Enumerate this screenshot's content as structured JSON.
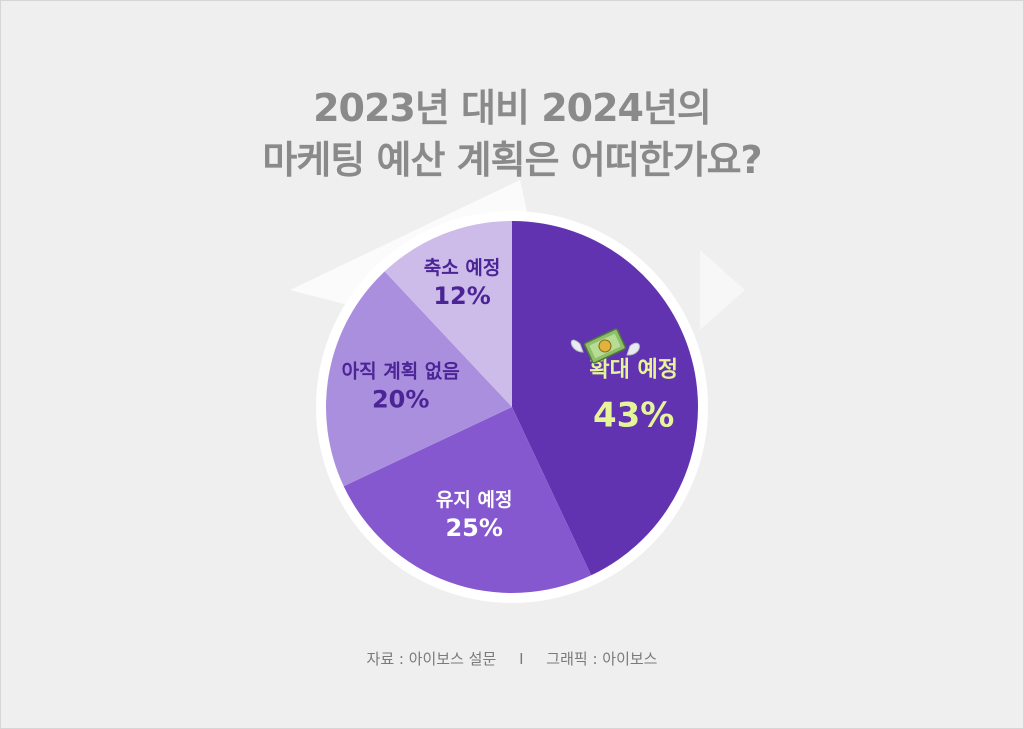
{
  "title": {
    "line1": "2023년 대비 2024년의",
    "line2": "마케팅 예산 계획은 어떠한가요?"
  },
  "chart_data": {
    "type": "pie",
    "slices": [
      {
        "label": "확대 예정",
        "value": 43,
        "display": "43%",
        "color": "#6233b0",
        "text_color": "#e7f59a"
      },
      {
        "label": "유지 예정",
        "value": 25,
        "display": "25%",
        "color": "#8658cf",
        "text_color": "#ffffff"
      },
      {
        "label": "아직 계획 없음",
        "value": 20,
        "display": "20%",
        "color": "#ab8fdf",
        "text_color": "#4b2595"
      },
      {
        "label": "축소 예정",
        "value": 12,
        "display": "12%",
        "color": "#cdbbea",
        "text_color": "#4b2595"
      }
    ],
    "start_angle_deg": 0,
    "direction": "clockwise",
    "icon": "flying-money-icon"
  },
  "footer": {
    "source": "자료 : 아이보스 설문",
    "separator": "I",
    "graphic": "그래픽 : 아이보스"
  }
}
